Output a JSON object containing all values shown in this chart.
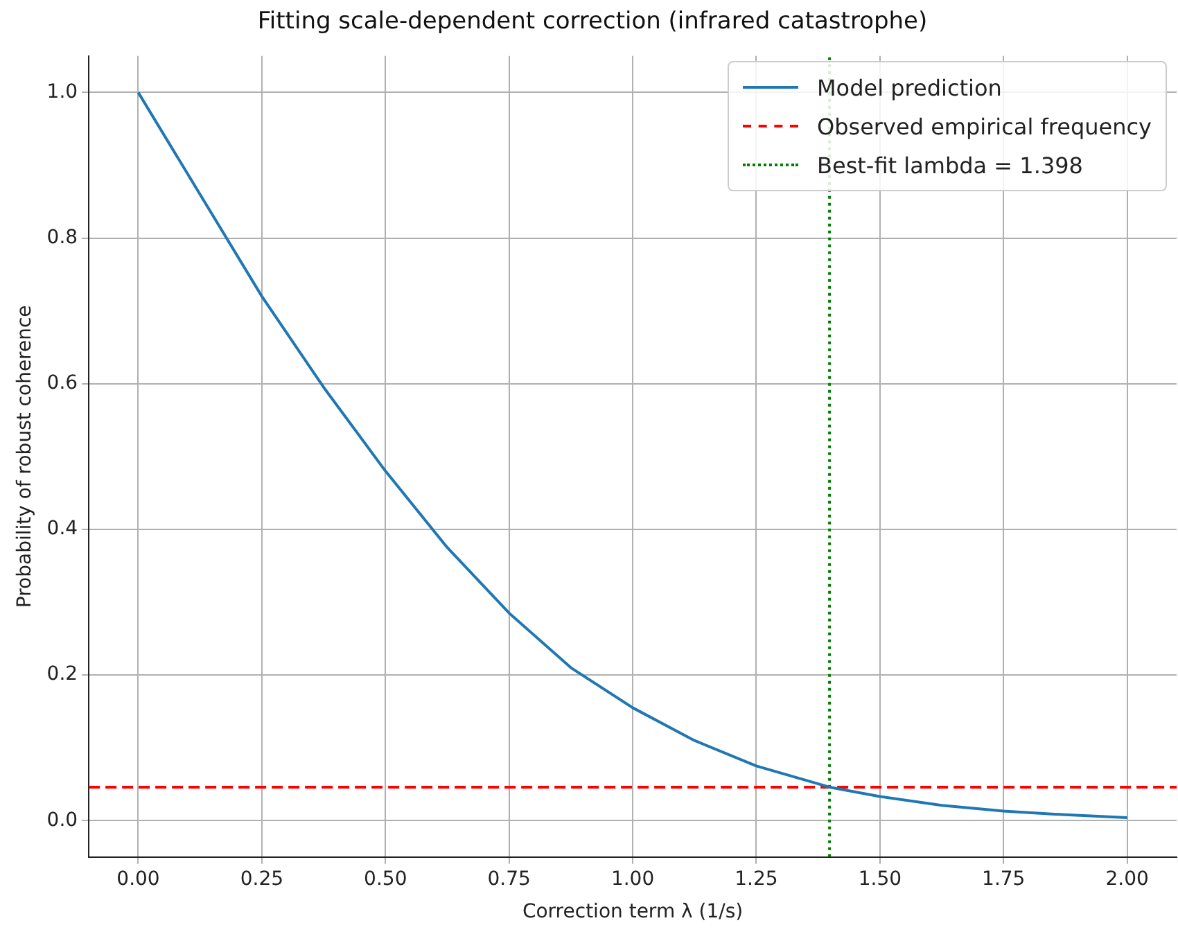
{
  "chart_data": {
    "type": "line",
    "title": "Fitting scale-dependent correction (infrared catastrophe)",
    "xlabel": "Correction term λ (1/s)",
    "ylabel": "Probability of robust coherence",
    "series": [
      {
        "name": "Model prediction",
        "color": "#1f77b4",
        "x": [
          0,
          0.125,
          0.25,
          0.375,
          0.5,
          0.625,
          0.75,
          0.875,
          1.0,
          1.125,
          1.25,
          1.398,
          1.5,
          1.625,
          1.75,
          1.875,
          2.0
        ],
        "values": [
          1.0,
          0.86,
          0.72,
          0.595,
          0.48,
          0.375,
          0.285,
          0.21,
          0.155,
          0.11,
          0.075,
          0.046,
          0.033,
          0.021,
          0.013,
          0.008,
          0.004
        ]
      }
    ],
    "ref_lines": [
      {
        "axis": "y",
        "value": 0.046,
        "label": "Observed empirical frequency",
        "color": "#ff0000",
        "line_style": "dashed"
      },
      {
        "axis": "x",
        "value": 1.398,
        "label": "Best-fit lambda = 1.398",
        "color": "#008000",
        "line_style": "dotted"
      }
    ],
    "xlim": [
      -0.1,
      2.1
    ],
    "ylim": [
      -0.05,
      1.05
    ],
    "xticks": [
      {
        "value": 0,
        "label": "0.00"
      },
      0.25,
      {
        "value": 0.5,
        "label": "0.50"
      },
      0.75,
      {
        "value": 1,
        "label": "1.00"
      },
      1.25,
      {
        "value": 1.5,
        "label": "1.50"
      },
      1.75,
      {
        "value": 2,
        "label": "2.00"
      }
    ],
    "yticks": [
      {
        "value": 0,
        "label": "0.0"
      },
      0.2,
      0.4,
      0.6,
      0.8,
      {
        "value": 1,
        "label": "1.0"
      }
    ],
    "grid": true,
    "legend": "top right",
    "line_style": "solid",
    "marker": "none"
  }
}
